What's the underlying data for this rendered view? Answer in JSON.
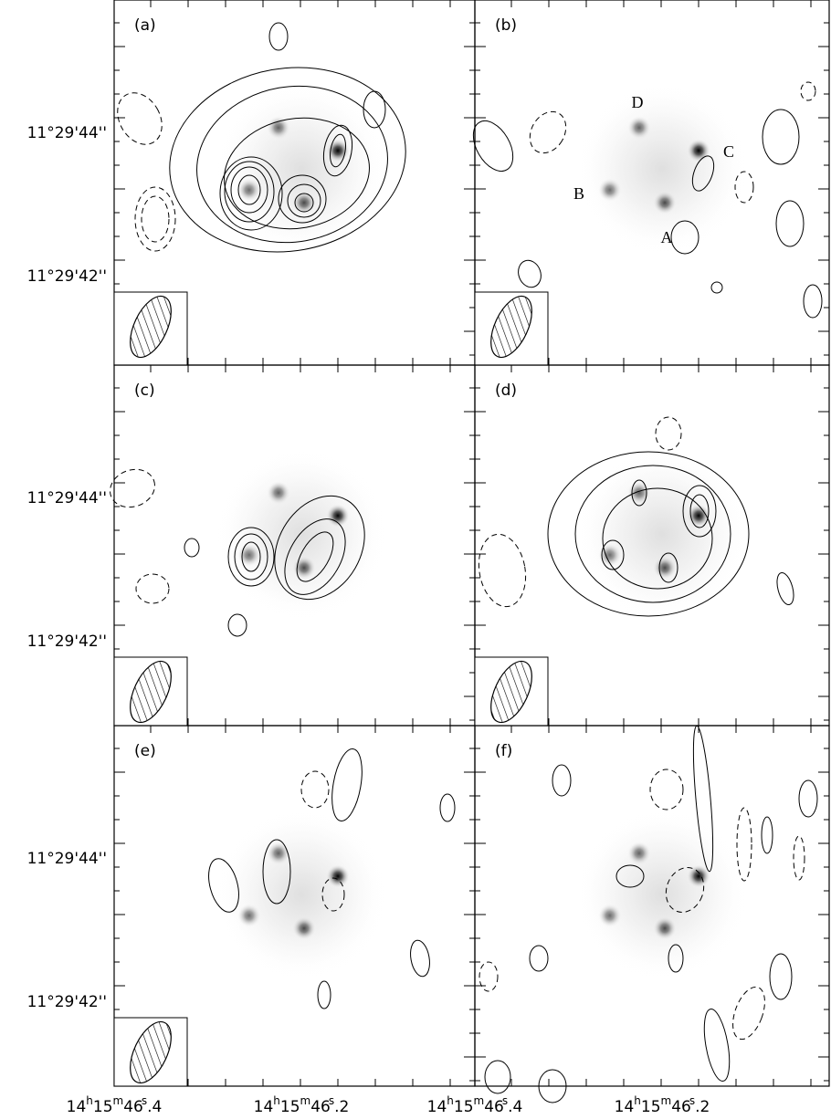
{
  "panels": [
    {
      "label": "(a)"
    },
    {
      "label": "(b)"
    },
    {
      "label": "(c)"
    },
    {
      "label": "(d)"
    },
    {
      "label": "(e)"
    },
    {
      "label": "(f)"
    }
  ],
  "y_axis": {
    "labels": [
      "11°29'44''",
      "11°29'42''"
    ]
  },
  "x_axis": {
    "labels": [
      [
        "14",
        "h",
        "15",
        "m",
        "46",
        "s",
        ".4"
      ],
      [
        "14",
        "h",
        "15",
        "m",
        "46",
        "s",
        ".2"
      ]
    ]
  },
  "sources": {
    "A": "A",
    "B": "B",
    "C": "C",
    "D": "D"
  }
}
